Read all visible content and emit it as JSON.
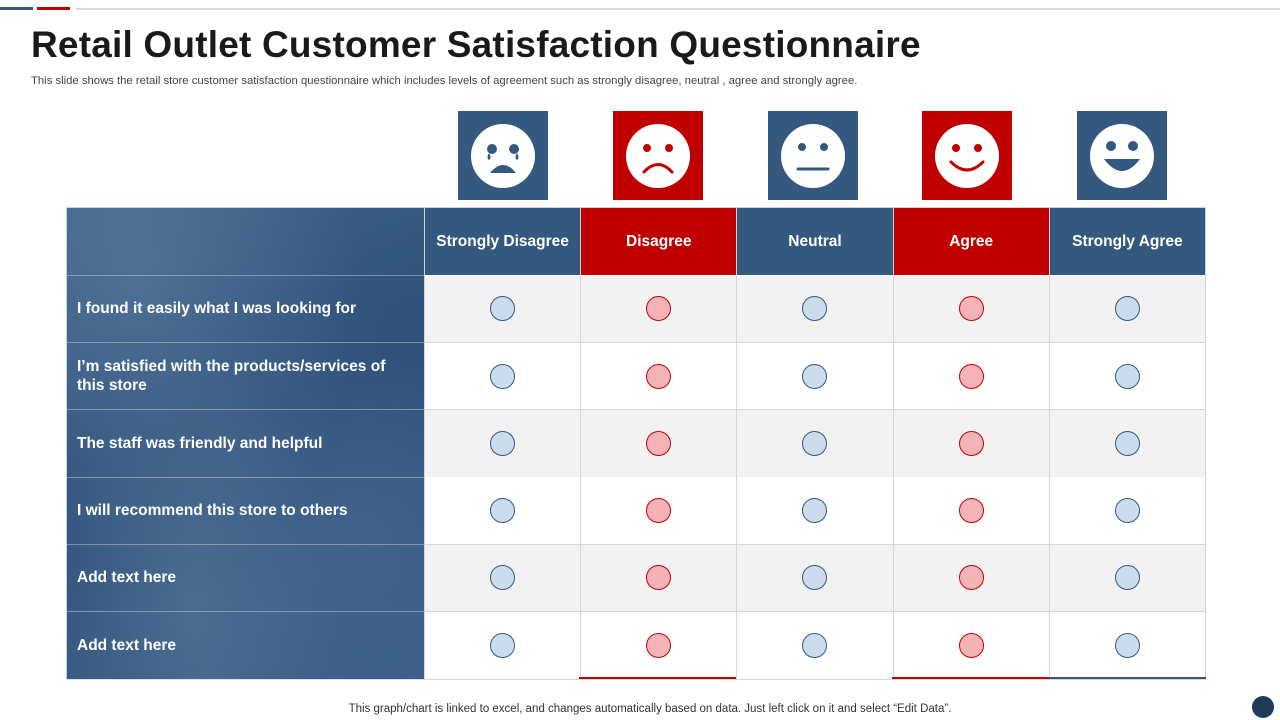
{
  "title": "Retail Outlet Customer Satisfaction Questionnaire",
  "subtitle": "This slide shows the retail store customer satisfaction questionnaire which includes levels of agreement such as strongly disagree, neutral , agree and strongly agree.",
  "columns": [
    "Strongly Disagree",
    "Disagree",
    "Neutral",
    "Agree",
    "Strongly Agree"
  ],
  "column_faces": [
    "crying-face-icon",
    "sad-face-icon",
    "neutral-face-icon",
    "smiling-face-icon",
    "grinning-face-icon"
  ],
  "questions": [
    "I found it easily what I was looking for",
    "I’m satisfied  with the products/services  of this store",
    "The staff  was friendly and helpful",
    "I will recommend this store to others",
    "Add text  here",
    "Add text  here"
  ],
  "footer": "This graph/chart is linked to excel,  and changes automatically based on data. Just left click on it and select “Edit Data”.",
  "colors": {
    "blue": "#34587e",
    "red": "#c00000",
    "blue_radio": "#cddcec",
    "red_radio": "#f4b4b7"
  }
}
